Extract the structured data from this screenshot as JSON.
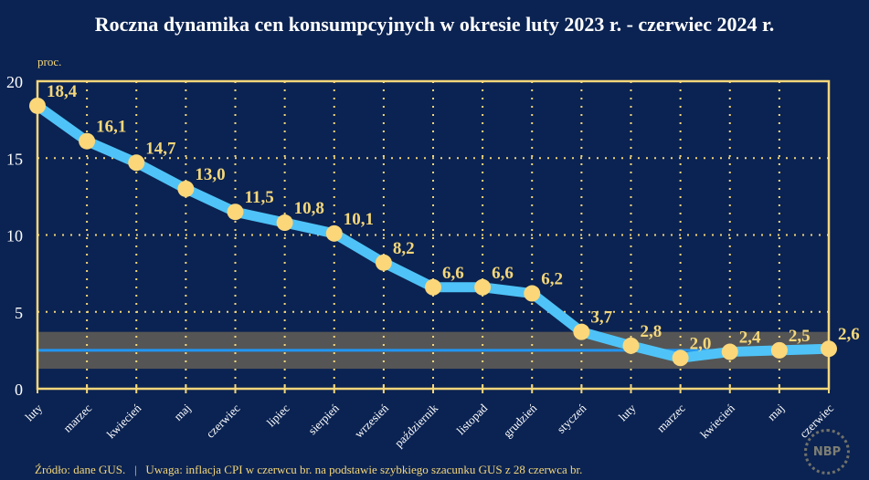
{
  "title": "Roczna dynamika cen konsumpcyjnych w okresie luty 2023 r. - czerwiec 2024 r.",
  "footer": "Źródło: dane GUS.   |   Uwaga: inflacja CPI w czerwcu br. na podstawie szybkiego szacunku GUS z 28 czerwca br.",
  "logo_text": "NBP",
  "chart_data": {
    "type": "line",
    "title": "Roczna dynamika cen konsumpcyjnych w okresie luty 2023 r. - czerwiec 2024 r.",
    "ylabel": "proc.",
    "ylim": [
      0,
      20
    ],
    "yticks": [
      0,
      5,
      10,
      15,
      20
    ],
    "grid": true,
    "categories": [
      "luty",
      "marzec",
      "kwiecień",
      "maj",
      "czerwiec",
      "lipiec",
      "sierpień",
      "wrzesień",
      "październik",
      "listopad",
      "grudzień",
      "styczeń",
      "luty",
      "marzec",
      "kwiecień",
      "maj",
      "czerwiec"
    ],
    "values": [
      18.4,
      16.1,
      14.7,
      13.0,
      11.5,
      10.8,
      10.1,
      8.2,
      6.6,
      6.6,
      6.2,
      3.7,
      2.8,
      2.0,
      2.4,
      2.5,
      2.6
    ],
    "data_labels": [
      "18,4",
      "16,1",
      "14,7",
      "13,0",
      "11,5",
      "10,8",
      "10,1",
      "8,2",
      "6,6",
      "6,6",
      "6,2",
      "3,7",
      "2,8",
      "2,0",
      "2,4",
      "2,5",
      "2,6"
    ],
    "target_line": 2.5,
    "target_band": [
      1.3,
      3.7
    ],
    "colors": {
      "background": "#0b2352",
      "series": "#4fc3f7",
      "points": "#fbd77a",
      "axis": "#f5d77a",
      "target_line": "#2196f3",
      "band": "#555555",
      "labels": "#f5d77a"
    }
  }
}
